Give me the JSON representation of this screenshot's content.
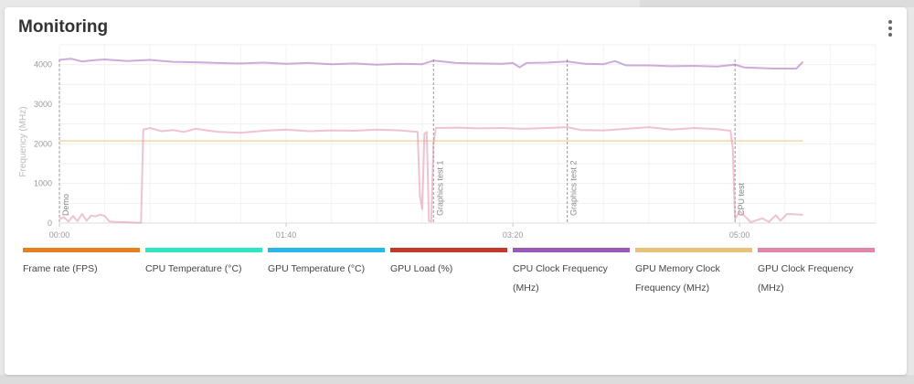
{
  "panel": {
    "title": "Monitoring",
    "menu_icon": "kebab-vertical-icon"
  },
  "chart_data": {
    "type": "line",
    "ylabel": "Frequency (MHz)",
    "ylim": [
      0,
      4500
    ],
    "y_ticks": [
      0,
      1000,
      2000,
      3000,
      4000
    ],
    "xlim": [
      0,
      360
    ],
    "x_ticks": [
      {
        "value": 0,
        "label": "00:00"
      },
      {
        "value": 100,
        "label": "01:40"
      },
      {
        "value": 200,
        "label": "03:20"
      },
      {
        "value": 300,
        "label": "05:00"
      }
    ],
    "grid": true,
    "legend_position": "bottom",
    "annotations": [
      {
        "x": 0,
        "label": "Demo"
      },
      {
        "x": 165,
        "label": "Graphics test 1"
      },
      {
        "x": 224,
        "label": "Graphics test 2"
      },
      {
        "x": 298,
        "label": "CPU test"
      }
    ],
    "series": [
      {
        "name": "Frame rate (FPS)",
        "color": "#e67e22",
        "values": []
      },
      {
        "name": "CPU Temperature (°C)",
        "color": "#2ee6c4",
        "values": []
      },
      {
        "name": "GPU Temperature (°C)",
        "color": "#29b6e8",
        "values": []
      },
      {
        "name": "GPU Load (%)",
        "color": "#c0392b",
        "values": []
      },
      {
        "name": "CPU Clock Frequency (MHz)",
        "color": "#9b59b6",
        "values": [
          [
            0,
            4120
          ],
          [
            5,
            4150
          ],
          [
            10,
            4080
          ],
          [
            15,
            4110
          ],
          [
            20,
            4130
          ],
          [
            30,
            4090
          ],
          [
            40,
            4120
          ],
          [
            50,
            4070
          ],
          [
            60,
            4060
          ],
          [
            70,
            4040
          ],
          [
            80,
            4030
          ],
          [
            90,
            4050
          ],
          [
            100,
            4020
          ],
          [
            110,
            4040
          ],
          [
            120,
            4010
          ],
          [
            130,
            4030
          ],
          [
            140,
            4000
          ],
          [
            150,
            4020
          ],
          [
            160,
            4010
          ],
          [
            165,
            4100
          ],
          [
            175,
            4040
          ],
          [
            185,
            4030
          ],
          [
            195,
            4020
          ],
          [
            200,
            4040
          ],
          [
            203,
            3930
          ],
          [
            206,
            4040
          ],
          [
            215,
            4050
          ],
          [
            224,
            4080
          ],
          [
            232,
            4020
          ],
          [
            240,
            4010
          ],
          [
            245,
            4090
          ],
          [
            250,
            3980
          ],
          [
            260,
            3980
          ],
          [
            270,
            3960
          ],
          [
            280,
            3970
          ],
          [
            290,
            3950
          ],
          [
            298,
            4000
          ],
          [
            302,
            3930
          ],
          [
            315,
            3900
          ],
          [
            325,
            3900
          ],
          [
            328,
            4070
          ]
        ]
      },
      {
        "name": "GPU Memory Clock Frequency (MHz)",
        "color": "#e6c27a",
        "values": [
          [
            0,
            2075
          ],
          [
            328,
            2075
          ]
        ]
      },
      {
        "name": "GPU Clock Frequency (MHz)",
        "color": "#e086a9",
        "values": [
          [
            0,
            100
          ],
          [
            2,
            150
          ],
          [
            4,
            40
          ],
          [
            6,
            180
          ],
          [
            8,
            50
          ],
          [
            10,
            230
          ],
          [
            12,
            60
          ],
          [
            14,
            190
          ],
          [
            16,
            170
          ],
          [
            18,
            210
          ],
          [
            20,
            180
          ],
          [
            22,
            40
          ],
          [
            25,
            30
          ],
          [
            30,
            20
          ],
          [
            35,
            10
          ],
          [
            36,
            10
          ],
          [
            37,
            2360
          ],
          [
            40,
            2400
          ],
          [
            45,
            2320
          ],
          [
            50,
            2350
          ],
          [
            55,
            2300
          ],
          [
            60,
            2380
          ],
          [
            70,
            2300
          ],
          [
            80,
            2280
          ],
          [
            90,
            2330
          ],
          [
            100,
            2360
          ],
          [
            110,
            2320
          ],
          [
            120,
            2340
          ],
          [
            130,
            2330
          ],
          [
            140,
            2360
          ],
          [
            150,
            2340
          ],
          [
            158,
            2300
          ],
          [
            159,
            700
          ],
          [
            160,
            350
          ],
          [
            161,
            2260
          ],
          [
            162,
            2300
          ],
          [
            163,
            50
          ],
          [
            164,
            40
          ],
          [
            165,
            2000
          ],
          [
            166,
            2400
          ],
          [
            175,
            2410
          ],
          [
            185,
            2390
          ],
          [
            195,
            2400
          ],
          [
            205,
            2380
          ],
          [
            215,
            2400
          ],
          [
            224,
            2420
          ],
          [
            230,
            2350
          ],
          [
            240,
            2340
          ],
          [
            250,
            2380
          ],
          [
            260,
            2420
          ],
          [
            270,
            2360
          ],
          [
            280,
            2400
          ],
          [
            290,
            2370
          ],
          [
            296,
            2330
          ],
          [
            297,
            1900
          ],
          [
            298,
            100
          ],
          [
            300,
            300
          ],
          [
            305,
            20
          ],
          [
            310,
            120
          ],
          [
            313,
            30
          ],
          [
            316,
            200
          ],
          [
            318,
            60
          ],
          [
            321,
            230
          ],
          [
            325,
            220
          ],
          [
            328,
            210
          ]
        ]
      }
    ]
  }
}
